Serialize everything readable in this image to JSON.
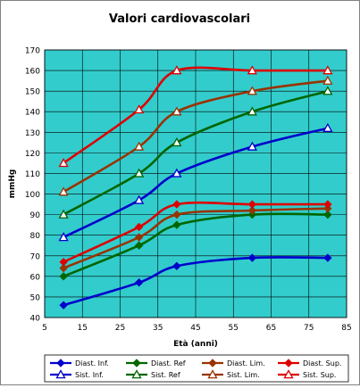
{
  "chart_data": {
    "type": "line",
    "title": "Valori cardiovascolari",
    "xlabel": "Età (anni)",
    "ylabel": "mmHg",
    "xlim": [
      5,
      85
    ],
    "ylim": [
      40,
      170
    ],
    "xticks": [
      5,
      15,
      25,
      35,
      45,
      55,
      65,
      75,
      85
    ],
    "yticks": [
      40,
      50,
      60,
      70,
      80,
      90,
      100,
      110,
      120,
      130,
      140,
      150,
      160,
      170
    ],
    "grid": true,
    "legend_position": "bottom",
    "plot_background": "#33cccc",
    "series": [
      {
        "name": "Diast. Inf.",
        "color": "#0000cc",
        "marker": "diamond",
        "x": [
          10,
          30,
          40,
          60,
          80
        ],
        "y": [
          46,
          57,
          65,
          69,
          69
        ]
      },
      {
        "name": "Diast. Ref",
        "color": "#006600",
        "marker": "diamond",
        "x": [
          10,
          30,
          40,
          60,
          80
        ],
        "y": [
          60,
          75,
          85,
          90,
          90
        ]
      },
      {
        "name": "Diast. Lim.",
        "color": "#993300",
        "marker": "diamond",
        "x": [
          10,
          30,
          40,
          60,
          80
        ],
        "y": [
          64,
          79,
          90,
          92,
          93
        ]
      },
      {
        "name": "Diast. Sup.",
        "color": "#dd0000",
        "marker": "diamond",
        "x": [
          10,
          30,
          40,
          60,
          80
        ],
        "y": [
          67,
          84,
          95,
          95,
          95
        ]
      },
      {
        "name": "Sist. Inf.",
        "color": "#0000cc",
        "marker": "triangle",
        "x": [
          10,
          30,
          40,
          60,
          80
        ],
        "y": [
          79,
          97,
          110,
          123,
          132
        ]
      },
      {
        "name": "Sist. Ref",
        "color": "#006600",
        "marker": "triangle",
        "x": [
          10,
          30,
          40,
          60,
          80
        ],
        "y": [
          90,
          110,
          125,
          140,
          150
        ]
      },
      {
        "name": "Sist. Lim.",
        "color": "#993300",
        "marker": "triangle",
        "x": [
          10,
          30,
          40,
          60,
          80
        ],
        "y": [
          101,
          123,
          140,
          150,
          155
        ]
      },
      {
        "name": "Sist. Sup.",
        "color": "#dd0000",
        "marker": "triangle",
        "x": [
          10,
          30,
          40,
          60,
          80
        ],
        "y": [
          115,
          141,
          160,
          160,
          160
        ]
      }
    ]
  }
}
